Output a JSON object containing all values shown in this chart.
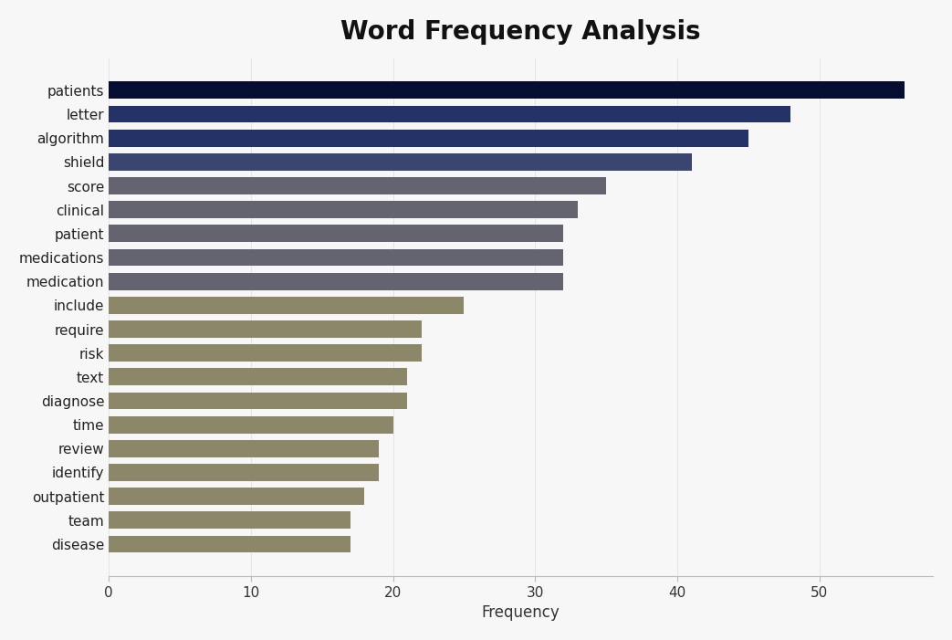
{
  "title": "Word Frequency Analysis",
  "xlabel": "Frequency",
  "categories": [
    "patients",
    "letter",
    "algorithm",
    "shield",
    "score",
    "clinical",
    "patient",
    "medications",
    "medication",
    "include",
    "require",
    "risk",
    "text",
    "diagnose",
    "time",
    "review",
    "identify",
    "outpatient",
    "team",
    "disease"
  ],
  "values": [
    56,
    48,
    45,
    41,
    35,
    33,
    32,
    32,
    32,
    25,
    22,
    22,
    21,
    21,
    20,
    19,
    19,
    18,
    17,
    17
  ],
  "colors": [
    "#050e30",
    "#243268",
    "#243268",
    "#3a4570",
    "#636470",
    "#636470",
    "#636470",
    "#636470",
    "#636470",
    "#8c8768",
    "#8c8768",
    "#8c8768",
    "#8c8768",
    "#8c8768",
    "#8c8768",
    "#8c8768",
    "#8c8768",
    "#8c8768",
    "#8c8768",
    "#8c8768"
  ],
  "background_color": "#f7f7f7",
  "title_fontsize": 20,
  "label_fontsize": 12,
  "tick_fontsize": 11,
  "xlim": [
    0,
    58
  ],
  "xticks": [
    0,
    10,
    20,
    30,
    40,
    50
  ]
}
